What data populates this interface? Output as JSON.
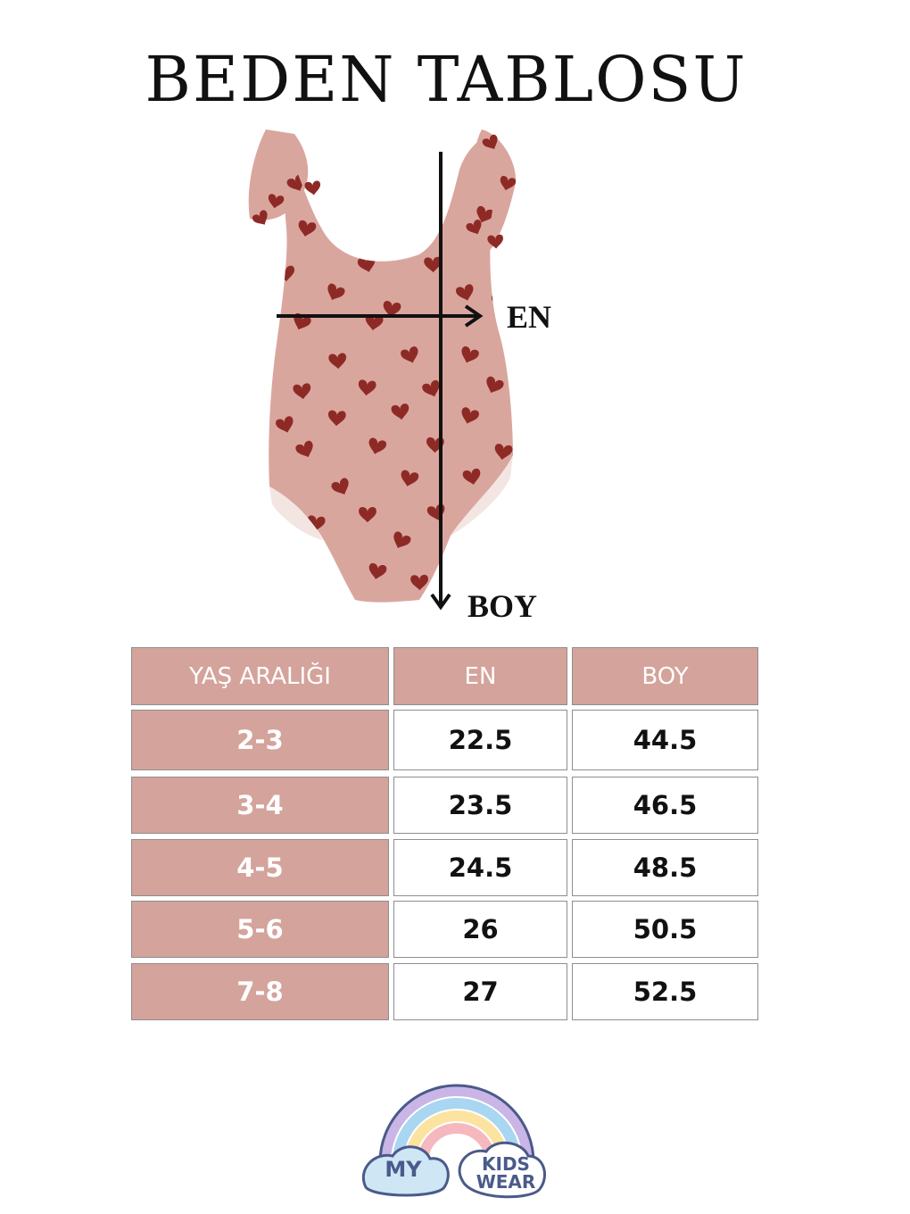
{
  "title": "BEDEN TABLOSU",
  "diagram": {
    "width_label": "EN",
    "length_label": "BOY",
    "garment_color": "#d9a69e",
    "heart_color": "#8e2a26"
  },
  "table": {
    "headers": [
      "YAŞ ARALIĞI",
      "EN",
      "BOY"
    ],
    "rows": [
      {
        "age": "2-3",
        "en": "22.5",
        "boy": "44.5"
      },
      {
        "age": "3-4",
        "en": "23.5",
        "boy": "46.5"
      },
      {
        "age": "4-5",
        "en": "24.5",
        "boy": "48.5"
      },
      {
        "age": "5-6",
        "en": "26",
        "boy": "50.5"
      },
      {
        "age": "7-8",
        "en": "27",
        "boy": "52.5"
      }
    ],
    "header_color": "#d4a39b"
  },
  "logo": {
    "word1": "MY",
    "word2": "KIDS",
    "word3": "WEAR"
  }
}
